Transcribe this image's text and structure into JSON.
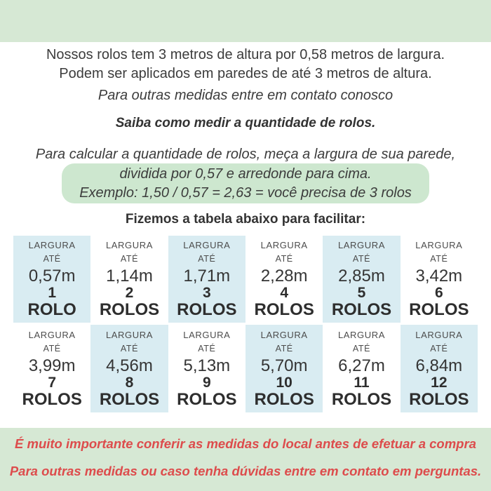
{
  "colors": {
    "band_green": "#d6e8d4",
    "box_green": "#cde7cf",
    "cell_blue": "#d9ecf2",
    "warn_red": "#dd4c4c",
    "text_dark": "#3d3d3d"
  },
  "intro": {
    "line1": "Nossos rolos tem 3 metros de altura por 0,58 metros de largura.",
    "line2": "Podem ser aplicados em paredes de até 3 metros de altura.",
    "line3": "Para outras medidas entre em contato conosco",
    "line4": "Saiba como medir a quantidade de rolos."
  },
  "calc": {
    "intro_line": "Para calcular a quantidade de rolos, meça a largura de sua parede,",
    "box_line1": "dividida por 0,57 e arredonde para cima.",
    "box_line2": "Exemplo: 1,50 / 0,57 = 2,63 = você precisa de 3 rolos"
  },
  "table": {
    "intro": "Fizemos a tabela abaixo para facilitar:",
    "label_top": "LARGURA",
    "label_mid": "ATÉ",
    "cells": [
      {
        "width": "0,57m",
        "count": "1",
        "unit": "ROLO"
      },
      {
        "width": "1,14m",
        "count": "2",
        "unit": "ROLOS"
      },
      {
        "width": "1,71m",
        "count": "3",
        "unit": "ROLOS"
      },
      {
        "width": "2,28m",
        "count": "4",
        "unit": "ROLOS"
      },
      {
        "width": "2,85m",
        "count": "5",
        "unit": "ROLOS"
      },
      {
        "width": "3,42m",
        "count": "6",
        "unit": "ROLOS"
      },
      {
        "width": "3,99m",
        "count": "7",
        "unit": "ROLOS"
      },
      {
        "width": "4,56m",
        "count": "8",
        "unit": "ROLOS"
      },
      {
        "width": "5,13m",
        "count": "9",
        "unit": "ROLOS"
      },
      {
        "width": "5,70m",
        "count": "10",
        "unit": "ROLOS"
      },
      {
        "width": "6,27m",
        "count": "11",
        "unit": "ROLOS"
      },
      {
        "width": "6,84m",
        "count": "12",
        "unit": "ROLOS"
      }
    ]
  },
  "footer": {
    "line1": "É muito importante conferir as medidas do local antes de efetuar a compra",
    "line2": "Para outras medidas ou caso tenha dúvidas entre em contato em perguntas."
  }
}
